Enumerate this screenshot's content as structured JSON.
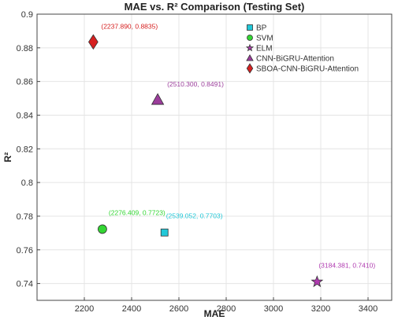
{
  "chart_data": {
    "type": "scatter",
    "title": "MAE vs. R² Comparison (Testing Set)",
    "xlabel": "MAE",
    "ylabel": "R²",
    "xlim": [
      2000,
      3500
    ],
    "ylim": [
      0.73,
      0.9
    ],
    "xticks": [
      "2200",
      "2400",
      "2600",
      "2800",
      "3000",
      "3200",
      "3400"
    ],
    "yticks": [
      "0.74",
      "0.76",
      "0.78",
      "0.8",
      "0.82",
      "0.84",
      "0.86",
      "0.88",
      "0.9"
    ],
    "grid": true,
    "legend_position": "top-right",
    "series": [
      {
        "name": "BP",
        "marker": "square",
        "color": "#22c8d8",
        "x": 2539.052,
        "y": 0.7703,
        "label": "(2539.052, 0.7703)"
      },
      {
        "name": "SVM",
        "marker": "circle",
        "color": "#33d633",
        "x": 2276.409,
        "y": 0.7723,
        "label": "(2276.409, 0.7723)"
      },
      {
        "name": "ELM",
        "marker": "star",
        "color": "#b03bb0",
        "x": 3184.381,
        "y": 0.741,
        "label": "(3184.381, 0.7410)"
      },
      {
        "name": "CNN-BiGRU-Attention",
        "marker": "triangle",
        "color": "#9b3d9b",
        "x": 2510.3,
        "y": 0.8491,
        "label": "(2510.300, 0.8491)"
      },
      {
        "name": "SBOA-CNN-BiGRU-Attention",
        "marker": "diamond",
        "color": "#d62020",
        "x": 2237.89,
        "y": 0.8835,
        "label": "(2237.890, 0.8835)"
      }
    ]
  }
}
